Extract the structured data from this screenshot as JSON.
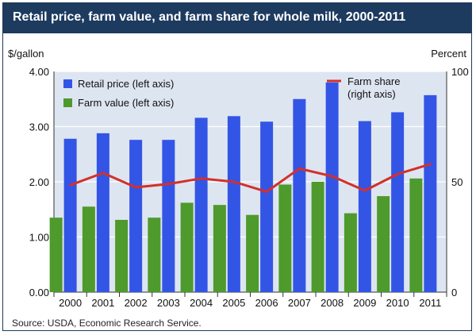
{
  "header": {
    "title": "Retail price, farm value, and farm share for whole milk, 2000-2011"
  },
  "source": "Source: USDA, Economic Research Service.",
  "colors": {
    "retail": "#3355e6",
    "farm_value": "#4e9a2c",
    "farm_share": "#d3302a",
    "title_bg": "#1d3a5f",
    "plot_bg": "#dde5f1"
  },
  "chart_data": {
    "type": "bar",
    "categories": [
      "2000",
      "2001",
      "2002",
      "2003",
      "2004",
      "2005",
      "2006",
      "2007",
      "2008",
      "2009",
      "2010",
      "2011"
    ],
    "series": [
      {
        "name": "Retail price (left axis)",
        "axis": "left",
        "kind": "bar",
        "values": [
          2.78,
          2.88,
          2.76,
          2.76,
          3.16,
          3.19,
          3.09,
          3.5,
          3.8,
          3.1,
          3.26,
          3.57
        ]
      },
      {
        "name": "Farm value (left axis)",
        "axis": "left",
        "kind": "bar",
        "values": [
          1.35,
          1.55,
          1.31,
          1.35,
          1.62,
          1.58,
          1.4,
          1.95,
          2.0,
          1.43,
          1.74,
          2.06
        ]
      },
      {
        "name": "Farm share\n(right axis)",
        "axis": "right",
        "kind": "line",
        "values": [
          48.5,
          54.0,
          47.5,
          49.0,
          51.5,
          50.0,
          45.5,
          56.0,
          52.5,
          46.0,
          53.5,
          58.0
        ]
      }
    ],
    "ylabel_left": "$/gallon",
    "ylabel_right": "Percent",
    "ylim_left": [
      0,
      4
    ],
    "ylim_right": [
      0,
      100
    ],
    "yticks_left": [
      "0.00",
      "1.00",
      "2.00",
      "3.00",
      "4.00"
    ],
    "yticks_right": [
      "0",
      "50",
      "100"
    ],
    "grid": true,
    "legend_placement": "top"
  }
}
